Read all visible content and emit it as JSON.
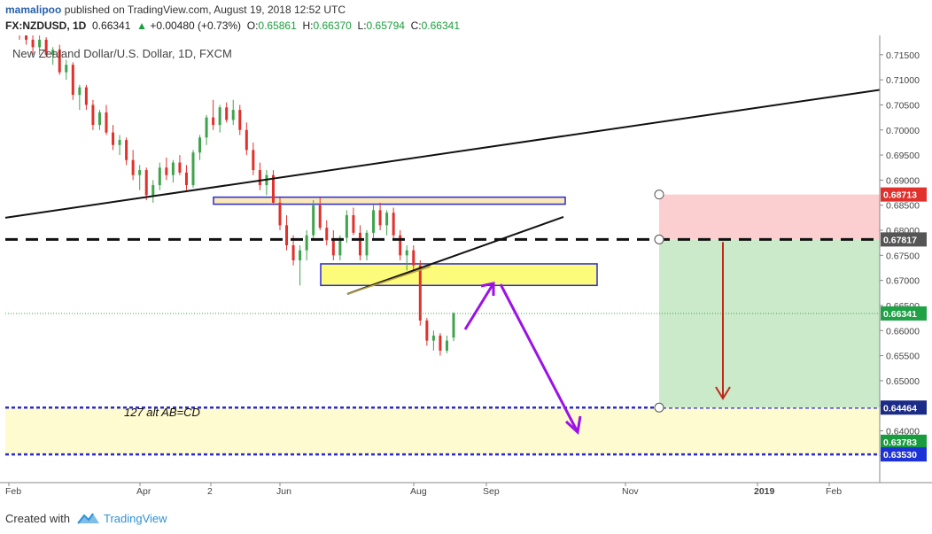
{
  "header": {
    "username": "mamalipoo",
    "published_text": " published on TradingView.com, August 19, 2018 12:52 UTC",
    "symbol": "FX:NZDUSD, 1D",
    "last": "0.66341",
    "change_arrow": "▲",
    "change": "+0.00480 (+0.73%)",
    "open_label": "O:",
    "open": "0.65861",
    "high_label": "H:",
    "high": "0.66370",
    "low_label": "L:",
    "low": "0.65794",
    "close_label": "C:",
    "close": "0.66341"
  },
  "footer": {
    "created_with": "Created with",
    "brand": "TradingView",
    "logo_icon": "tradingview-logo-icon"
  },
  "colors": {
    "bull": "#3fa34d",
    "bear": "#e0312c",
    "zone_yellow": "#fdfb7a",
    "zone_light_yellow": "#fefbd0",
    "zone_beige": "#fbe8b8",
    "zone_border": "#2b2bd1",
    "target_green": "#cbeaca",
    "stop_red": "#fbcfcf",
    "arrow_purple": "#9b12e6",
    "arrow_red": "#c0281a",
    "tag_red": "#e0312c",
    "tag_green": "#1fa246",
    "tag_gray": "#555555",
    "tag_navy": "#1c2b86",
    "tag_blue": "#1d32d6",
    "tag_green_dark": "#199c3e"
  },
  "chart_data": {
    "type": "candlestick",
    "title": "New Zealand Dollar/U.S. Dollar, 1D, FXCM",
    "y_axis": {
      "ticks": [
        "0.71500",
        "0.71000",
        "0.70500",
        "0.70000",
        "0.69500",
        "0.69000",
        "0.68500",
        "0.68000",
        "0.67500",
        "0.67000",
        "0.66500",
        "0.66000",
        "0.65500",
        "0.65000",
        "0.64500",
        "0.64000",
        "0.63500"
      ],
      "range": [
        0.6325,
        0.7185
      ]
    },
    "x_axis": {
      "labels": [
        {
          "text": "Feb",
          "bold": false
        },
        {
          "text": "Apr",
          "bold": false
        },
        {
          "text": "2",
          "bold": false
        },
        {
          "text": "Jun",
          "bold": false
        },
        {
          "text": "Aug",
          "bold": false
        },
        {
          "text": "Sep",
          "bold": false
        },
        {
          "text": "Nov",
          "bold": false
        },
        {
          "text": "2019",
          "bold": true
        },
        {
          "text": "Feb",
          "bold": false
        }
      ]
    },
    "price_tags": [
      {
        "label": "0.68713",
        "value": 0.68713,
        "color": "#e0312c"
      },
      {
        "label": "0.67817",
        "value": 0.67817,
        "color": "#555555"
      },
      {
        "label": "0.66341",
        "value": 0.66341,
        "color": "#1fa246"
      },
      {
        "label": "0.64464",
        "value": 0.64464,
        "color": "#1c2b86"
      },
      {
        "label": "0.63783",
        "value": 0.63783,
        "color": "#199c3e"
      },
      {
        "label": "0.63530",
        "value": 0.6353,
        "color": "#1d32d6"
      }
    ],
    "annotations": {
      "pattern_label": "127 alt AB=CD",
      "trendline_value_start": 0.6825,
      "trendline_value_end": 0.708,
      "support_dashed_level": 0.67817,
      "current_price_level": 0.66341,
      "stop_level": 0.68713,
      "entry_level": 0.67817,
      "target_level": 0.64464,
      "target_zone": [
        0.6353,
        0.64464
      ],
      "demand_zone": [
        0.669,
        0.6733
      ],
      "resistance_zone": [
        0.6852,
        0.6866
      ]
    },
    "candles": [
      [
        0.722,
        0.723,
        0.718,
        0.7195
      ],
      [
        0.7195,
        0.7215,
        0.717,
        0.718
      ],
      [
        0.718,
        0.719,
        0.715,
        0.7165
      ],
      [
        0.7165,
        0.719,
        0.715,
        0.718
      ],
      [
        0.718,
        0.7185,
        0.7145,
        0.715
      ],
      [
        0.715,
        0.7165,
        0.713,
        0.716
      ],
      [
        0.716,
        0.717,
        0.711,
        0.7115
      ],
      [
        0.7115,
        0.714,
        0.71,
        0.713
      ],
      [
        0.713,
        0.7135,
        0.706,
        0.707
      ],
      [
        0.707,
        0.709,
        0.704,
        0.7085
      ],
      [
        0.7085,
        0.709,
        0.704,
        0.705
      ],
      [
        0.705,
        0.706,
        0.7,
        0.701
      ],
      [
        0.701,
        0.704,
        0.7,
        0.7035
      ],
      [
        0.7035,
        0.705,
        0.699,
        0.6995
      ],
      [
        0.6995,
        0.701,
        0.696,
        0.697
      ],
      [
        0.697,
        0.699,
        0.695,
        0.698
      ],
      [
        0.698,
        0.6985,
        0.693,
        0.694
      ],
      [
        0.694,
        0.696,
        0.69,
        0.691
      ],
      [
        0.691,
        0.693,
        0.688,
        0.692
      ],
      [
        0.692,
        0.6925,
        0.686,
        0.687
      ],
      [
        0.687,
        0.69,
        0.6855,
        0.689
      ],
      [
        0.689,
        0.6935,
        0.688,
        0.6925
      ],
      [
        0.6925,
        0.6945,
        0.69,
        0.691
      ],
      [
        0.691,
        0.694,
        0.6895,
        0.6935
      ],
      [
        0.6935,
        0.695,
        0.691,
        0.6915
      ],
      [
        0.6915,
        0.693,
        0.688,
        0.689
      ],
      [
        0.689,
        0.696,
        0.6885,
        0.6955
      ],
      [
        0.6955,
        0.699,
        0.694,
        0.6985
      ],
      [
        0.6985,
        0.703,
        0.697,
        0.7025
      ],
      [
        0.7025,
        0.706,
        0.7,
        0.701
      ],
      [
        0.701,
        0.705,
        0.6995,
        0.7045
      ],
      [
        0.7045,
        0.7055,
        0.7015,
        0.702
      ],
      [
        0.702,
        0.706,
        0.701,
        0.704
      ],
      [
        0.704,
        0.705,
        0.699,
        0.7
      ],
      [
        0.7,
        0.7015,
        0.695,
        0.696
      ],
      [
        0.696,
        0.6975,
        0.691,
        0.692
      ],
      [
        0.692,
        0.6935,
        0.688,
        0.689
      ],
      [
        0.689,
        0.692,
        0.687,
        0.691
      ],
      [
        0.691,
        0.692,
        0.685,
        0.6855
      ],
      [
        0.6855,
        0.6865,
        0.68,
        0.681
      ],
      [
        0.681,
        0.683,
        0.676,
        0.677
      ],
      [
        0.677,
        0.679,
        0.673,
        0.674
      ],
      [
        0.674,
        0.677,
        0.669,
        0.676
      ],
      [
        0.676,
        0.68,
        0.674,
        0.679
      ],
      [
        0.679,
        0.686,
        0.678,
        0.685
      ],
      [
        0.685,
        0.6865,
        0.68,
        0.6805
      ],
      [
        0.6805,
        0.682,
        0.677,
        0.678
      ],
      [
        0.678,
        0.68,
        0.674,
        0.675
      ],
      [
        0.675,
        0.679,
        0.674,
        0.6785
      ],
      [
        0.6785,
        0.684,
        0.6775,
        0.683
      ],
      [
        0.683,
        0.6845,
        0.679,
        0.6795
      ],
      [
        0.6795,
        0.681,
        0.674,
        0.675
      ],
      [
        0.675,
        0.68,
        0.674,
        0.6795
      ],
      [
        0.6795,
        0.685,
        0.6785,
        0.684
      ],
      [
        0.684,
        0.6855,
        0.68,
        0.681
      ],
      [
        0.681,
        0.684,
        0.679,
        0.6835
      ],
      [
        0.6835,
        0.6845,
        0.678,
        0.679
      ],
      [
        0.679,
        0.68,
        0.674,
        0.675
      ],
      [
        0.675,
        0.677,
        0.672,
        0.676
      ],
      [
        0.676,
        0.677,
        0.672,
        0.673
      ],
      [
        0.673,
        0.674,
        0.661,
        0.662
      ],
      [
        0.662,
        0.6625,
        0.657,
        0.658
      ],
      [
        0.658,
        0.66,
        0.656,
        0.659
      ],
      [
        0.659,
        0.6595,
        0.655,
        0.656
      ],
      [
        0.656,
        0.659,
        0.6555,
        0.658
      ],
      [
        0.6586,
        0.6637,
        0.6579,
        0.6634
      ]
    ]
  }
}
